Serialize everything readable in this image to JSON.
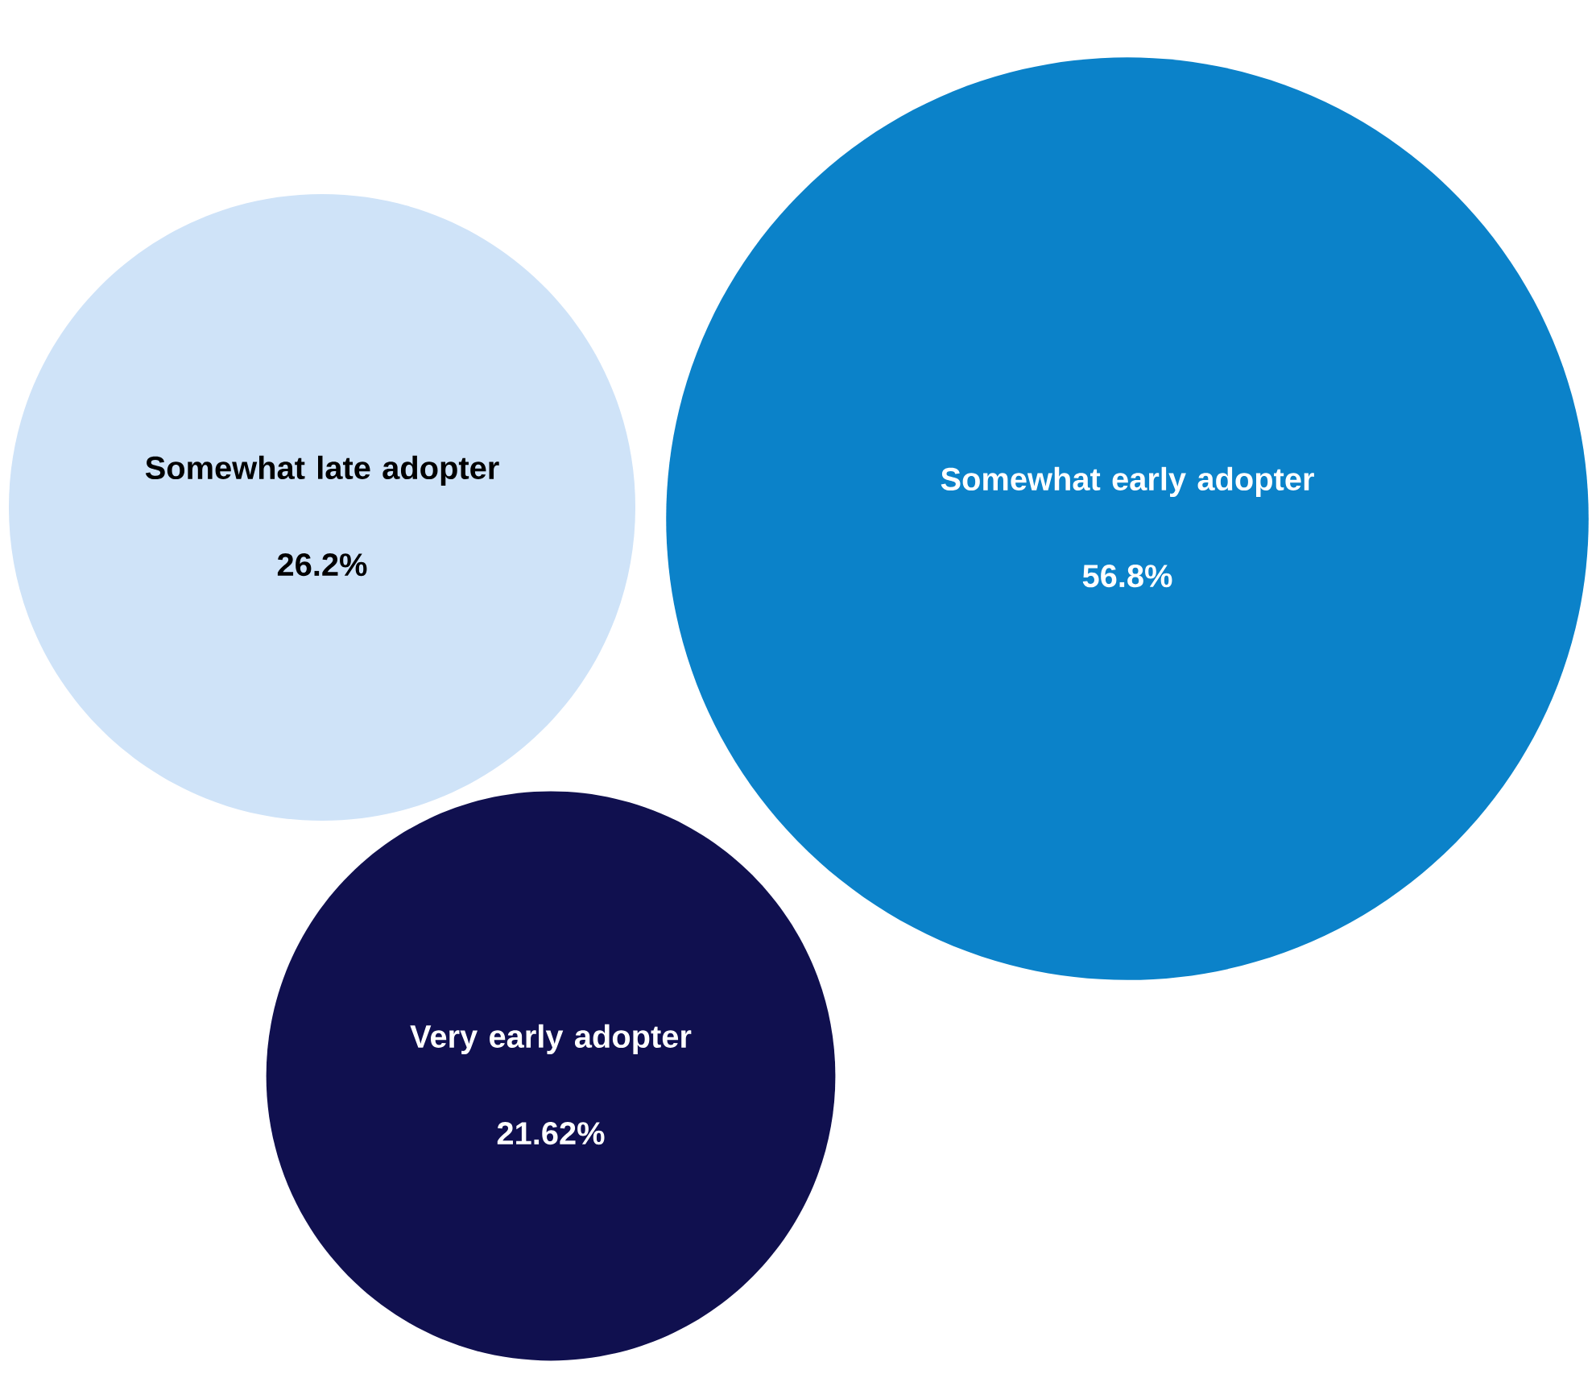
{
  "chart_data": {
    "type": "other",
    "categories": [
      "Somewhat late adopter",
      "Somewhat early adopter",
      "Very early adopter"
    ],
    "values": [
      26.2,
      56.8,
      21.62
    ],
    "value_labels": [
      "26.2%",
      "56.8%",
      "21.62%"
    ],
    "colors": [
      "#cfe3f8",
      "#0b82c9",
      "#10104f"
    ]
  }
}
